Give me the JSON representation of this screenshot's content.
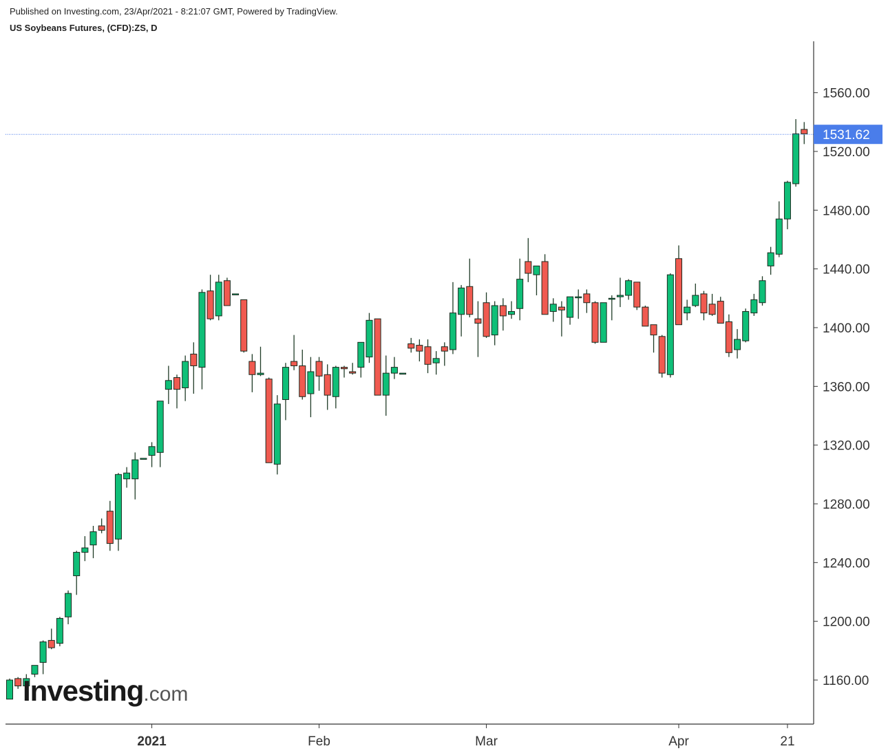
{
  "header": {
    "published": "Published on Investing.com, 23/Apr/2021 - 8:21:07 GMT, Powered by TradingView.",
    "title": "US Soybeans Futures, (CFD):ZS, D"
  },
  "logo": {
    "main": "Investing",
    "suffix": ".com"
  },
  "colors": {
    "up": "#0fbf78",
    "down": "#f05a50",
    "wick": "#1f3b26",
    "last_price": "#4a7dea",
    "axis": "#333333"
  },
  "chart_data": {
    "type": "candlestick",
    "title": "US Soybeans Futures, (CFD):ZS, D",
    "ylim": [
      1130,
      1595
    ],
    "y_ticks": [
      "1160.00",
      "1200.00",
      "1240.00",
      "1280.00",
      "1320.00",
      "1360.00",
      "1400.00",
      "1440.00",
      "1480.00",
      "1520.00",
      "1560.00"
    ],
    "x_ticks": [
      {
        "label": "2021",
        "index": 17,
        "bold": true
      },
      {
        "label": "Feb",
        "index": 37,
        "bold": false
      },
      {
        "label": "Mar",
        "index": 57,
        "bold": false
      },
      {
        "label": "Apr",
        "index": 80,
        "bold": false
      },
      {
        "label": "21",
        "index": 93,
        "bold": false
      }
    ],
    "last_price": "1531.62",
    "last_price_value": 1531.62,
    "candles": [
      [
        1147,
        1161,
        1147,
        1160
      ],
      [
        1161,
        1162,
        1154,
        1156
      ],
      [
        1156,
        1164,
        1150,
        1161
      ],
      [
        1164,
        1170,
        1162,
        1170
      ],
      [
        1172,
        1187,
        1164,
        1186
      ],
      [
        1187,
        1195,
        1181,
        1182
      ],
      [
        1185,
        1203,
        1183,
        1202
      ],
      [
        1203,
        1221,
        1198,
        1219
      ],
      [
        1231,
        1248,
        1218,
        1247
      ],
      [
        1247,
        1258,
        1241,
        1250
      ],
      [
        1252,
        1265,
        1243,
        1261
      ],
      [
        1265,
        1270,
        1260,
        1262
      ],
      [
        1275,
        1282,
        1248,
        1253
      ],
      [
        1256,
        1301,
        1248,
        1300
      ],
      [
        1297,
        1305,
        1291,
        1301
      ],
      [
        1297,
        1315,
        1283,
        1310
      ],
      [
        1311,
        1311,
        1311,
        1311
      ],
      [
        1313,
        1322,
        1305,
        1319
      ],
      [
        1315,
        1350,
        1305,
        1350
      ],
      [
        1358,
        1374,
        1348,
        1364
      ],
      [
        1366,
        1368,
        1345,
        1358
      ],
      [
        1359,
        1381,
        1350,
        1377
      ],
      [
        1382,
        1390,
        1355,
        1374
      ],
      [
        1373,
        1426,
        1358,
        1424
      ],
      [
        1425,
        1436,
        1405,
        1406
      ],
      [
        1408,
        1436,
        1405,
        1431
      ],
      [
        1432,
        1434,
        1415,
        1415
      ],
      [
        1423,
        1423,
        1423,
        1423
      ],
      [
        1419,
        1419,
        1383,
        1384
      ],
      [
        1377,
        1382,
        1356,
        1368
      ],
      [
        1368,
        1387,
        1367,
        1369
      ],
      [
        1365,
        1366,
        1308,
        1308
      ],
      [
        1307,
        1354,
        1300,
        1348
      ],
      [
        1351,
        1376,
        1337,
        1373
      ],
      [
        1377,
        1395,
        1371,
        1374
      ],
      [
        1374,
        1385,
        1351,
        1353
      ],
      [
        1355,
        1380,
        1339,
        1370
      ],
      [
        1377,
        1380,
        1357,
        1367
      ],
      [
        1368,
        1375,
        1344,
        1354
      ],
      [
        1353,
        1374,
        1345,
        1373
      ],
      [
        1373,
        1374,
        1366,
        1372
      ],
      [
        1370,
        1376,
        1368,
        1369
      ],
      [
        1373,
        1390,
        1366,
        1390
      ],
      [
        1380,
        1410,
        1376,
        1405
      ],
      [
        1406,
        1405,
        1355,
        1354
      ],
      [
        1354,
        1381,
        1340,
        1369
      ],
      [
        1369,
        1380,
        1365,
        1373
      ],
      [
        1369,
        1369,
        1369,
        1369
      ],
      [
        1389,
        1393,
        1383,
        1386
      ],
      [
        1388,
        1392,
        1377,
        1384
      ],
      [
        1387,
        1392,
        1369,
        1375
      ],
      [
        1376,
        1384,
        1368,
        1379
      ],
      [
        1387,
        1390,
        1374,
        1384
      ],
      [
        1385,
        1431,
        1382,
        1410
      ],
      [
        1409,
        1429,
        1394,
        1427
      ],
      [
        1428,
        1447,
        1407,
        1409
      ],
      [
        1406,
        1418,
        1380,
        1403
      ],
      [
        1417,
        1424,
        1393,
        1394
      ],
      [
        1395,
        1418,
        1388,
        1415
      ],
      [
        1415,
        1420,
        1398,
        1408
      ],
      [
        1409,
        1418,
        1406,
        1411
      ],
      [
        1413,
        1447,
        1405,
        1433
      ],
      [
        1445,
        1461,
        1431,
        1437
      ],
      [
        1436,
        1441,
        1422,
        1442
      ],
      [
        1445,
        1450,
        1409,
        1409
      ],
      [
        1411,
        1420,
        1404,
        1416
      ],
      [
        1414,
        1418,
        1394,
        1412
      ],
      [
        1407,
        1420,
        1402,
        1421
      ],
      [
        1421,
        1426,
        1406,
        1421
      ],
      [
        1423,
        1426,
        1410,
        1417
      ],
      [
        1417,
        1418,
        1389,
        1390
      ],
      [
        1390,
        1417,
        1390,
        1417
      ],
      [
        1420,
        1422,
        1405,
        1420
      ],
      [
        1421,
        1434,
        1414,
        1422
      ],
      [
        1422,
        1433,
        1419,
        1432
      ],
      [
        1431,
        1431,
        1412,
        1414
      ],
      [
        1414,
        1415,
        1401,
        1401
      ],
      [
        1402,
        1399,
        1383,
        1395
      ],
      [
        1394,
        1395,
        1366,
        1369
      ],
      [
        1368,
        1437,
        1366,
        1436
      ],
      [
        1447,
        1456,
        1402,
        1402
      ],
      [
        1410,
        1419,
        1405,
        1414
      ],
      [
        1415,
        1430,
        1414,
        1422
      ],
      [
        1423,
        1425,
        1405,
        1410
      ],
      [
        1416,
        1423,
        1408,
        1409
      ],
      [
        1418,
        1421,
        1403,
        1403
      ],
      [
        1404,
        1409,
        1380,
        1383
      ],
      [
        1385,
        1399,
        1379,
        1392
      ],
      [
        1391,
        1413,
        1390,
        1411
      ],
      [
        1410,
        1423,
        1408,
        1419
      ],
      [
        1417,
        1435,
        1415,
        1432
      ],
      [
        1442,
        1455,
        1436,
        1451
      ],
      [
        1450,
        1486,
        1448,
        1474
      ],
      [
        1474,
        1500,
        1467,
        1499
      ],
      [
        1498,
        1542,
        1496,
        1532
      ],
      [
        1535,
        1540,
        1525,
        1532
      ]
    ]
  }
}
